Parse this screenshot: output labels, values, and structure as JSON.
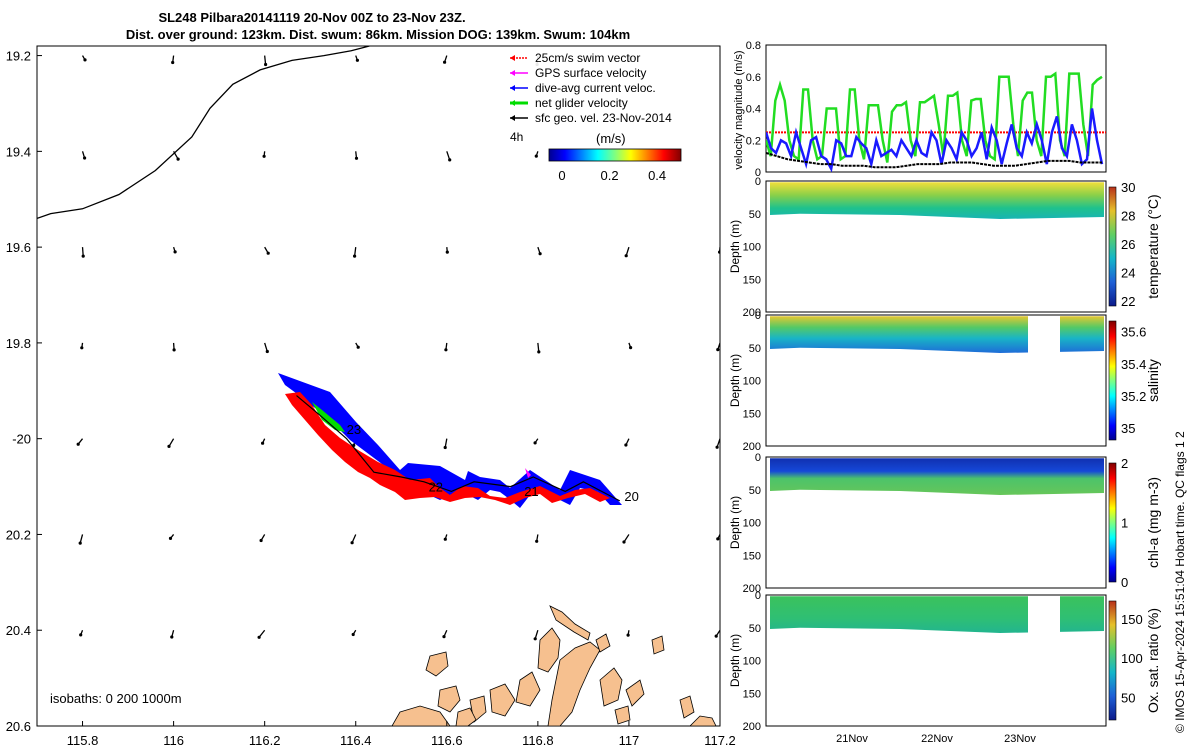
{
  "title": {
    "line1": "SL248 Pilbara20141119 20-Nov 00Z to 23-Nov 23Z.",
    "line2": "Dist. over ground: 123km. Dist. swum: 86km. Mission DOG: 139km. Swum: 104km"
  },
  "map": {
    "lat_ticks": [
      "19.2",
      "19.4",
      "19.6",
      "19.8",
      "-20",
      "20.2",
      "20.4",
      "20.6"
    ],
    "lon_ticks": [
      "115.8",
      "116",
      "116.2",
      "116.4",
      "116.6",
      "116.8",
      "117",
      "117.2"
    ],
    "xlim": [
      115.7,
      117.2
    ],
    "ylim": [
      -20.6,
      -19.18
    ],
    "isobaths_label": "isobaths: 0   200  1000m",
    "step_label": "4h",
    "colorbar_title": "(m/s)",
    "colorbar_ticks": [
      "0",
      "0.2",
      "0.4"
    ],
    "colors": {
      "land": "#f6c08f",
      "glider_red": "#ff0000",
      "glider_blue": "#0000ff",
      "glider_green": "#00dd00",
      "gps": "#ff00ff"
    },
    "legend": [
      {
        "label": "25cm/s swim vector",
        "color": "#ff0000"
      },
      {
        "label": "GPS surface velocity",
        "color": "#ff00ff"
      },
      {
        "label": "dive-avg current veloc.",
        "color": "#0000ff"
      },
      {
        "label": "net glider velocity",
        "color": "#00dd00"
      },
      {
        "label": "sfc geo. vel. 23-Nov-2014",
        "color": "#000000"
      }
    ],
    "day_labels": [
      {
        "text": "23",
        "lon": 116.38,
        "lat": -19.99
      },
      {
        "text": "22",
        "lon": 116.56,
        "lat": -20.11
      },
      {
        "text": "21",
        "lon": 116.77,
        "lat": -20.12
      },
      {
        "text": "20",
        "lon": 116.99,
        "lat": -20.13
      }
    ],
    "track": [
      {
        "lon": 116.98,
        "lat": -20.13
      },
      {
        "lon": 116.9,
        "lat": -20.09
      },
      {
        "lon": 116.86,
        "lat": -20.11
      },
      {
        "lon": 116.79,
        "lat": -20.08
      },
      {
        "lon": 116.74,
        "lat": -20.1
      },
      {
        "lon": 116.66,
        "lat": -20.09
      },
      {
        "lon": 116.61,
        "lat": -20.11
      },
      {
        "lon": 116.55,
        "lat": -20.09
      },
      {
        "lon": 116.5,
        "lat": -20.08
      },
      {
        "lon": 116.44,
        "lat": -20.07
      },
      {
        "lon": 116.38,
        "lat": -20.0
      },
      {
        "lon": 116.32,
        "lat": -19.95
      },
      {
        "lon": 116.27,
        "lat": -19.91
      }
    ],
    "coastline": [
      {
        "lon": 115.7,
        "lat": -19.54
      },
      {
        "lon": 115.73,
        "lat": -19.53
      },
      {
        "lon": 115.8,
        "lat": -19.52
      },
      {
        "lon": 115.88,
        "lat": -19.49
      },
      {
        "lon": 115.96,
        "lat": -19.44
      },
      {
        "lon": 116.04,
        "lat": -19.37
      },
      {
        "lon": 116.08,
        "lat": -19.31
      },
      {
        "lon": 116.13,
        "lat": -19.26
      },
      {
        "lon": 116.19,
        "lat": -19.23
      },
      {
        "lon": 116.26,
        "lat": -19.21
      },
      {
        "lon": 116.33,
        "lat": -19.2
      },
      {
        "lon": 116.39,
        "lat": -19.19
      },
      {
        "lon": 116.43,
        "lat": -19.18
      }
    ]
  },
  "velocity_panel": {
    "ylabel": "velocity magnitude (m/s)",
    "y_ticks": [
      "0",
      "0.2",
      "0.4",
      "0.6",
      "0.8"
    ],
    "ylim": [
      0,
      0.8
    ],
    "swim_ref": 0.25,
    "net_glider": [
      0.2,
      0.1,
      0.45,
      0.55,
      0.45,
      0.2,
      0.1,
      0.08,
      0.52,
      0.52,
      0.2,
      0.08,
      0.1,
      0.4,
      0.4,
      0.4,
      0.08,
      0.1,
      0.52,
      0.52,
      0.2,
      0.08,
      0.42,
      0.42,
      0.42,
      0.2,
      0.06,
      0.38,
      0.42,
      0.42,
      0.44,
      0.2,
      0.1,
      0.44,
      0.44,
      0.46,
      0.48,
      0.3,
      0.1,
      0.48,
      0.48,
      0.5,
      0.2,
      0.1,
      0.45,
      0.46,
      0.46,
      0.2,
      0.1,
      0.08,
      0.6,
      0.6,
      0.6,
      0.3,
      0.1,
      0.45,
      0.5,
      0.5,
      0.2,
      0.1,
      0.6,
      0.6,
      0.62,
      0.2,
      0.1,
      0.62,
      0.62,
      0.62,
      0.3,
      0.1,
      0.55,
      0.58,
      0.6
    ],
    "dive_avg": [
      0.25,
      0.15,
      0.12,
      0.2,
      0.18,
      0.1,
      0.25,
      0.15,
      0.05,
      0.2,
      0.22,
      0.1,
      0.08,
      0.02,
      0.2,
      0.18,
      0.1,
      0.1,
      0.22,
      0.18,
      0.15,
      0.05,
      0.2,
      0.1,
      0.12,
      0.14,
      0.1,
      0.2,
      0.15,
      0.1,
      0.2,
      0.12,
      0.1,
      0.25,
      0.2,
      0.05,
      0.2,
      0.15,
      0.08,
      0.25,
      0.2,
      0.1,
      0.15,
      0.25,
      0.08,
      0.28,
      0.2,
      0.05,
      0.18,
      0.3,
      0.15,
      0.1,
      0.25,
      0.18,
      0.3,
      0.2,
      0.05,
      0.25,
      0.35,
      0.15,
      0.1,
      0.3,
      0.2,
      0.05,
      0.08,
      0.4,
      0.2,
      0.05
    ],
    "sfc_geo": [
      0.12,
      0.1,
      0.08,
      0.07,
      0.06,
      0.05,
      0.05,
      0.04,
      0.04,
      0.04,
      0.03,
      0.03,
      0.03,
      0.04,
      0.05,
      0.05,
      0.05,
      0.06,
      0.06,
      0.06,
      0.05,
      0.04,
      0.04,
      0.04,
      0.05,
      0.06,
      0.07,
      0.07,
      0.07,
      0.06,
      0.06,
      0.06
    ]
  },
  "depth_panels": [
    {
      "ylabel": "Depth (m)",
      "cbar_label": "temperature (°C)",
      "cbar_ticks": [
        "22",
        "24",
        "26",
        "28",
        "30"
      ],
      "y_ticks": [
        "0",
        "50",
        "100",
        "150",
        "200"
      ],
      "gap": false
    },
    {
      "ylabel": "Depth (m)",
      "cbar_label": "salinity",
      "cbar_ticks": [
        "35",
        "35.2",
        "35.4",
        "35.6"
      ],
      "y_ticks": [
        "0",
        "50",
        "100",
        "150",
        "200"
      ],
      "gap": true
    },
    {
      "ylabel": "Depth (m)",
      "cbar_label": "chl-a (mg m-3)",
      "cbar_ticks": [
        "0",
        "1",
        "2"
      ],
      "y_ticks": [
        "0",
        "50",
        "100",
        "150",
        "200"
      ],
      "gap": false
    },
    {
      "ylabel": "Depth (m)",
      "cbar_label": "Ox. sat. ratio (%)",
      "cbar_ticks": [
        "50",
        "100",
        "150"
      ],
      "y_ticks": [
        "0",
        "50",
        "100",
        "150",
        "200"
      ],
      "gap": true
    }
  ],
  "time_ticks": [
    "21Nov",
    "22Nov",
    "23Nov"
  ],
  "credit": "© IMOS 15-Apr-2024 15:51:04 Hobart time. QC flags 1  2"
}
